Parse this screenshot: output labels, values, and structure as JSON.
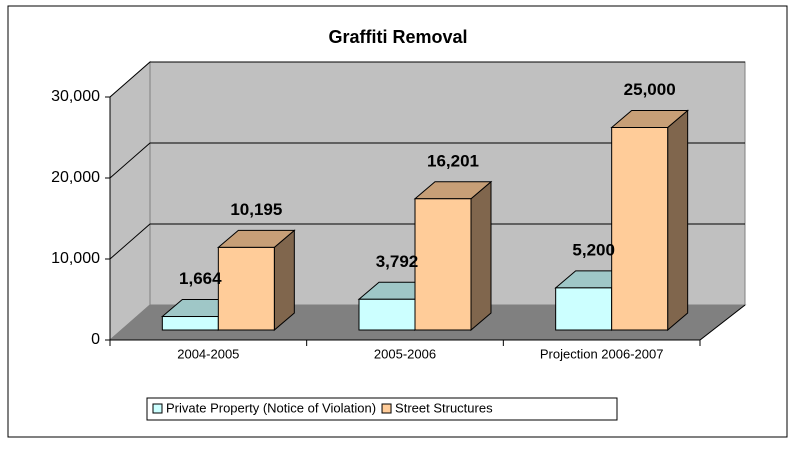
{
  "chart_data": {
    "type": "bar3d",
    "title": "Graffiti Removal",
    "categories": [
      "2004-2005",
      "2005-2006",
      "Projection 2006-2007"
    ],
    "series": [
      {
        "name": "Private Property (Notice of Violation)",
        "color": "#ccffff",
        "values": [
          1664,
          3792,
          5200
        ],
        "value_labels": [
          "1,664",
          "3,792",
          "5,200"
        ]
      },
      {
        "name": "Street Structures",
        "color": "#ffcc99",
        "values": [
          10195,
          16201,
          25000
        ],
        "value_labels": [
          "10,195",
          "16,201",
          "25,000"
        ]
      }
    ],
    "ylim": [
      0,
      30000
    ],
    "yticks": [
      0,
      {
        "value": 10000,
        "label": "10,000"
      },
      {
        "value": 20000,
        "label": "20,000"
      },
      {
        "value": 30000,
        "label": "30,000"
      }
    ],
    "grid": true,
    "legend": "bottom"
  }
}
